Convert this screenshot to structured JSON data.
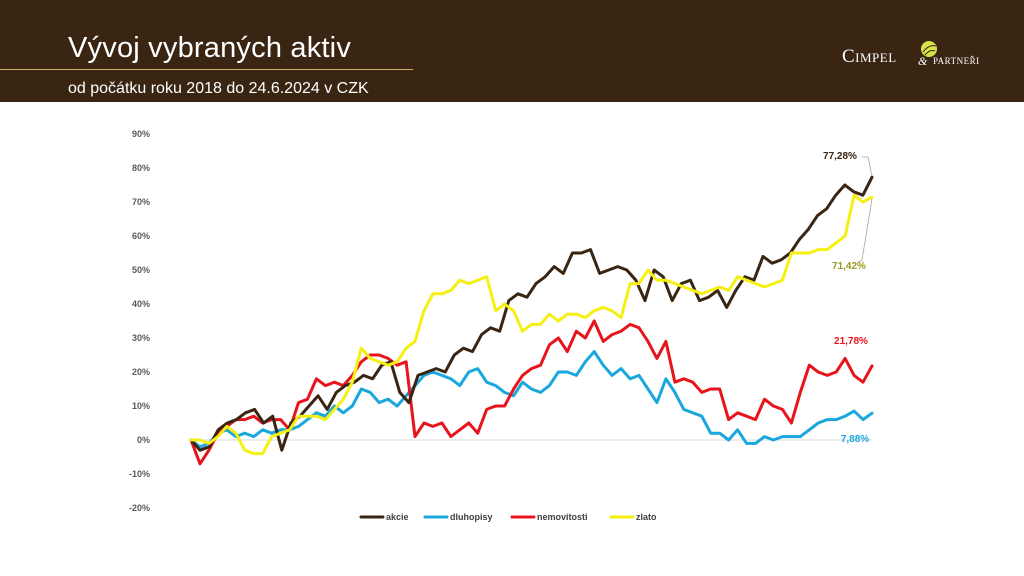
{
  "header": {
    "title": "Vývoj vybraných aktiv",
    "subtitle": "od počátku roku 2018  do 24.6.2024 v CZK",
    "logo_main": "Cimpel",
    "logo_amp": "&",
    "logo_sub": "PARTNEŘI"
  },
  "colors": {
    "header_bg": "#3a2513",
    "akcie": "#3a2513",
    "dluhopisy": "#1aa7dd",
    "nemovitosti": "#e8141b",
    "zlato": "#f5f012",
    "zlato_label": "#9a9a1e"
  },
  "chart_data": {
    "type": "line",
    "ylim": [
      -0.2,
      0.9
    ],
    "yticks": [
      "-20%",
      "-10%",
      "0%",
      "10%",
      "20%",
      "30%",
      "40%",
      "50%",
      "60%",
      "70%",
      "80%",
      "90%"
    ],
    "grid": false,
    "legend_position": "bottom",
    "series": [
      {
        "name": "akcie",
        "end_label": "77,28%",
        "values": [
          0.0,
          -0.03,
          -0.02,
          0.03,
          0.05,
          0.06,
          0.08,
          0.09,
          0.05,
          0.07,
          -0.03,
          0.05,
          0.07,
          0.1,
          0.13,
          0.09,
          0.14,
          0.16,
          0.17,
          0.19,
          0.18,
          0.22,
          0.23,
          0.14,
          0.11,
          0.19,
          0.2,
          0.21,
          0.2,
          0.25,
          0.27,
          0.26,
          0.31,
          0.33,
          0.32,
          0.41,
          0.43,
          0.42,
          0.46,
          0.48,
          0.51,
          0.49,
          0.55,
          0.55,
          0.56,
          0.49,
          0.5,
          0.51,
          0.5,
          0.47,
          0.41,
          0.5,
          0.48,
          0.41,
          0.46,
          0.47,
          0.41,
          0.42,
          0.44,
          0.39,
          0.44,
          0.48,
          0.47,
          0.54,
          0.52,
          0.53,
          0.55,
          0.59,
          0.62,
          0.66,
          0.68,
          0.72,
          0.75,
          0.73,
          0.72,
          0.7728
        ]
      },
      {
        "name": "dluhopisy",
        "end_label": "7,88%",
        "values": [
          0.0,
          -0.02,
          -0.01,
          0.02,
          0.03,
          0.01,
          0.02,
          0.01,
          0.03,
          0.02,
          0.03,
          0.03,
          0.04,
          0.06,
          0.08,
          0.07,
          0.1,
          0.08,
          0.1,
          0.15,
          0.14,
          0.11,
          0.12,
          0.1,
          0.13,
          0.16,
          0.19,
          0.2,
          0.19,
          0.18,
          0.16,
          0.2,
          0.21,
          0.17,
          0.16,
          0.14,
          0.13,
          0.17,
          0.15,
          0.14,
          0.16,
          0.2,
          0.2,
          0.19,
          0.23,
          0.26,
          0.22,
          0.19,
          0.21,
          0.18,
          0.19,
          0.15,
          0.11,
          0.18,
          0.14,
          0.09,
          0.08,
          0.07,
          0.02,
          0.02,
          0.0,
          0.03,
          -0.01,
          -0.01,
          0.01,
          0.0,
          0.01,
          0.01,
          0.01,
          0.03,
          0.05,
          0.06,
          0.06,
          0.07,
          0.085,
          0.06,
          0.0788
        ]
      },
      {
        "name": "nemovitosti",
        "end_label": "21,78%",
        "values": [
          0.0,
          -0.07,
          -0.03,
          0.02,
          0.04,
          0.06,
          0.06,
          0.07,
          0.05,
          0.06,
          0.06,
          0.03,
          0.11,
          0.12,
          0.18,
          0.16,
          0.17,
          0.16,
          0.19,
          0.23,
          0.25,
          0.25,
          0.24,
          0.22,
          0.23,
          0.01,
          0.05,
          0.04,
          0.05,
          0.01,
          0.03,
          0.05,
          0.02,
          0.09,
          0.1,
          0.1,
          0.15,
          0.19,
          0.21,
          0.22,
          0.28,
          0.3,
          0.26,
          0.32,
          0.3,
          0.35,
          0.29,
          0.31,
          0.32,
          0.34,
          0.33,
          0.29,
          0.24,
          0.29,
          0.17,
          0.18,
          0.17,
          0.14,
          0.15,
          0.15,
          0.06,
          0.08,
          0.07,
          0.06,
          0.12,
          0.1,
          0.09,
          0.05,
          0.14,
          0.22,
          0.2,
          0.19,
          0.2,
          0.24,
          0.19,
          0.17,
          0.2178
        ]
      },
      {
        "name": "zlato",
        "end_label": "71,42%",
        "values": [
          0.0,
          0.0,
          -0.01,
          0.01,
          0.04,
          0.02,
          -0.03,
          -0.04,
          -0.04,
          0.01,
          0.02,
          0.03,
          0.07,
          0.07,
          0.07,
          0.06,
          0.09,
          0.12,
          0.17,
          0.27,
          0.24,
          0.23,
          0.22,
          0.23,
          0.27,
          0.29,
          0.38,
          0.43,
          0.43,
          0.44,
          0.47,
          0.46,
          0.47,
          0.48,
          0.38,
          0.4,
          0.38,
          0.32,
          0.34,
          0.34,
          0.37,
          0.35,
          0.37,
          0.37,
          0.36,
          0.38,
          0.39,
          0.38,
          0.36,
          0.46,
          0.46,
          0.5,
          0.47,
          0.47,
          0.46,
          0.45,
          0.44,
          0.43,
          0.44,
          0.45,
          0.44,
          0.48,
          0.47,
          0.46,
          0.45,
          0.46,
          0.47,
          0.55,
          0.55,
          0.55,
          0.56,
          0.56,
          0.58,
          0.6,
          0.72,
          0.7,
          0.7142
        ]
      }
    ]
  }
}
